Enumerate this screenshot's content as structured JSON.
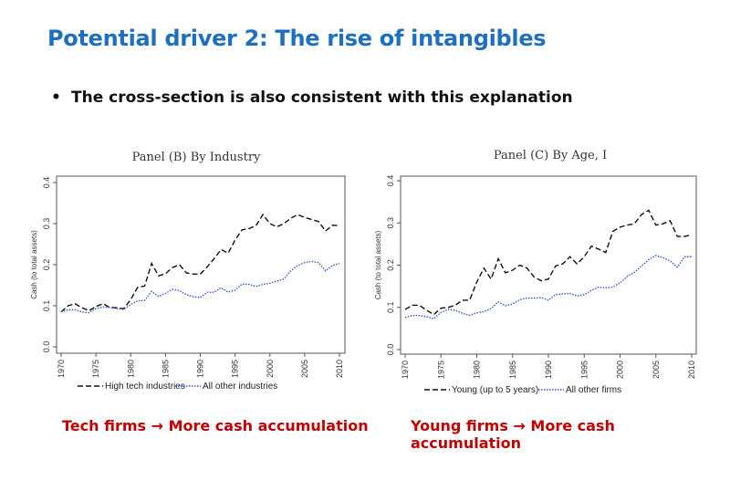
{
  "slide": {
    "title": "Potential driver 2: The rise of intangibles",
    "bullet": "The cross-section is also consistent with this explanation",
    "caption_left": "Tech firms → More cash accumulation",
    "caption_right": "Young firms → More cash accumulation"
  },
  "chart_data": [
    {
      "type": "line",
      "title": "Panel (B) By Industry",
      "ylabel": "Cash (to total assets)",
      "xlabel": "",
      "xlim": [
        1970,
        2010
      ],
      "ylim": [
        0,
        0.4
      ],
      "xticks": [
        "1970",
        "1975",
        "1980",
        "1985",
        "1990",
        "1995",
        "2000",
        "2005",
        "2010"
      ],
      "yticks": [
        "0.0",
        "0.1",
        "0.2",
        "0.3",
        "0.4"
      ],
      "legend": "bottom",
      "grid": false,
      "x": [
        1970,
        1971,
        1972,
        1973,
        1974,
        1975,
        1976,
        1977,
        1978,
        1979,
        1980,
        1981,
        1982,
        1983,
        1984,
        1985,
        1986,
        1987,
        1988,
        1989,
        1990,
        1991,
        1992,
        1993,
        1994,
        1995,
        1996,
        1997,
        1998,
        1999,
        2000,
        2001,
        2002,
        2003,
        2004,
        2005,
        2006,
        2007,
        2008,
        2009,
        2010
      ],
      "series": [
        {
          "name": "High tech industries",
          "color": "#111111",
          "dash": "dash",
          "values": [
            0.085,
            0.1,
            0.105,
            0.095,
            0.088,
            0.098,
            0.105,
            0.096,
            0.095,
            0.093,
            0.115,
            0.145,
            0.148,
            0.203,
            0.173,
            0.178,
            0.193,
            0.2,
            0.18,
            0.177,
            0.177,
            0.195,
            0.215,
            0.237,
            0.228,
            0.26,
            0.285,
            0.288,
            0.295,
            0.322,
            0.3,
            0.292,
            0.3,
            0.313,
            0.322,
            0.315,
            0.31,
            0.305,
            0.282,
            0.296,
            0.295
          ]
        },
        {
          "name": "All other industries",
          "color": "#3355CC",
          "dash": "dot",
          "values": [
            0.085,
            0.09,
            0.09,
            0.085,
            0.083,
            0.093,
            0.097,
            0.096,
            0.093,
            0.091,
            0.103,
            0.112,
            0.113,
            0.135,
            0.123,
            0.13,
            0.14,
            0.137,
            0.127,
            0.122,
            0.12,
            0.133,
            0.133,
            0.144,
            0.133,
            0.138,
            0.153,
            0.152,
            0.147,
            0.152,
            0.155,
            0.16,
            0.165,
            0.185,
            0.198,
            0.205,
            0.208,
            0.205,
            0.185,
            0.198,
            0.203
          ]
        }
      ]
    },
    {
      "type": "line",
      "title": "Panel (C) By Age, I",
      "ylabel": "Cash (to total assets)",
      "xlabel": "",
      "xlim": [
        1970,
        2010
      ],
      "ylim": [
        0,
        0.4
      ],
      "xticks": [
        "1970",
        "1975",
        "1980",
        "1985",
        "1990",
        "1995",
        "2000",
        "2005",
        "2010"
      ],
      "yticks": [
        "0.0",
        "0.1",
        "0.2",
        "0.3",
        "0.4"
      ],
      "legend": "bottom",
      "grid": false,
      "x": [
        1970,
        1971,
        1972,
        1973,
        1974,
        1975,
        1976,
        1977,
        1978,
        1979,
        1980,
        1981,
        1982,
        1983,
        1984,
        1985,
        1986,
        1987,
        1988,
        1989,
        1990,
        1991,
        1992,
        1993,
        1994,
        1995,
        1996,
        1997,
        1998,
        1999,
        2000,
        2001,
        2002,
        2003,
        2004,
        2005,
        2006,
        2007,
        2008,
        2009,
        2010
      ],
      "series": [
        {
          "name": "Young (up to 5 years)",
          "color": "#111111",
          "dash": "dash",
          "values": [
            0.095,
            0.105,
            0.105,
            0.093,
            0.083,
            0.098,
            0.1,
            0.105,
            0.117,
            0.117,
            0.16,
            0.193,
            0.167,
            0.215,
            0.182,
            0.188,
            0.2,
            0.193,
            0.172,
            0.163,
            0.167,
            0.198,
            0.203,
            0.22,
            0.203,
            0.22,
            0.245,
            0.238,
            0.23,
            0.28,
            0.29,
            0.295,
            0.298,
            0.32,
            0.33,
            0.295,
            0.298,
            0.305,
            0.268,
            0.268,
            0.272
          ]
        },
        {
          "name": "All other firms",
          "color": "#3355CC",
          "dash": "dot",
          "values": [
            0.076,
            0.081,
            0.081,
            0.078,
            0.073,
            0.088,
            0.095,
            0.093,
            0.086,
            0.081,
            0.087,
            0.09,
            0.097,
            0.113,
            0.104,
            0.108,
            0.118,
            0.122,
            0.122,
            0.123,
            0.117,
            0.13,
            0.132,
            0.133,
            0.127,
            0.13,
            0.14,
            0.148,
            0.146,
            0.148,
            0.158,
            0.173,
            0.183,
            0.198,
            0.213,
            0.223,
            0.218,
            0.21,
            0.195,
            0.22,
            0.22
          ]
        }
      ]
    }
  ]
}
